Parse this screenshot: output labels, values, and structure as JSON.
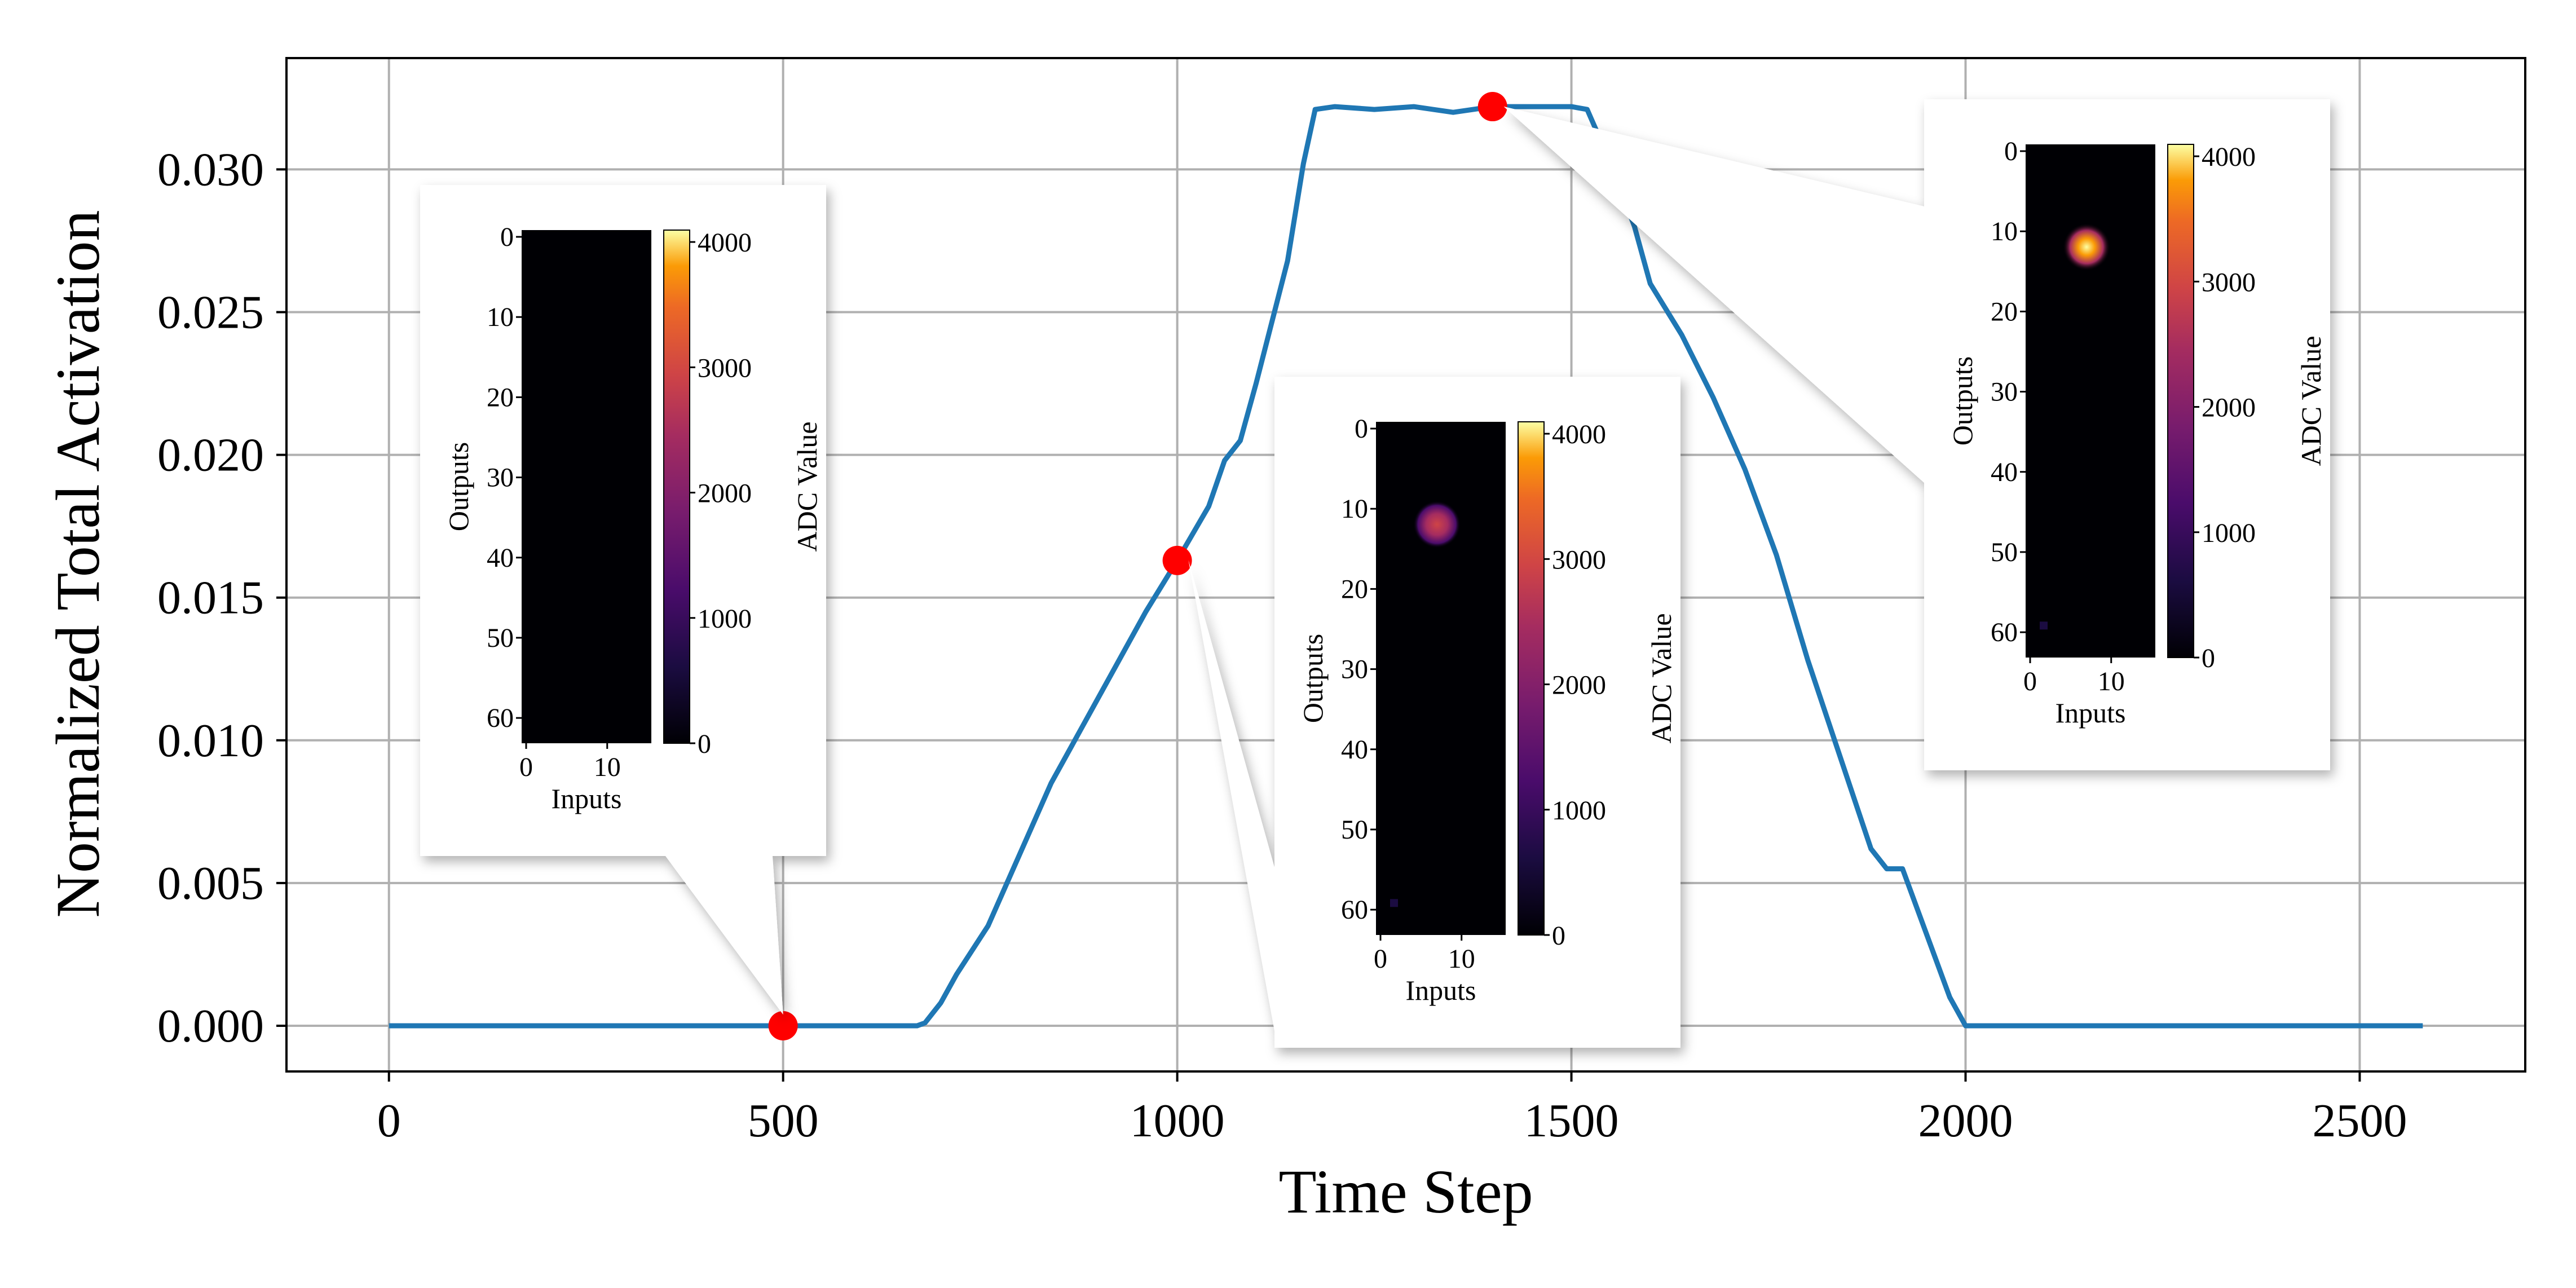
{
  "chart_data": {
    "type": "line",
    "title": "",
    "xlabel": "Time Step",
    "ylabel": "Normalized Total Activation",
    "xlim": [
      -130,
      2710
    ],
    "ylim": [
      -0.0016,
      0.0339
    ],
    "grid": true,
    "xticks": [
      0,
      500,
      1000,
      1500,
      2000,
      2500
    ],
    "xtick_labels": [
      "0",
      "500",
      "1000",
      "1500",
      "2000",
      "2500"
    ],
    "yticks": [
      0.0,
      0.005,
      0.01,
      0.015,
      0.02,
      0.025,
      0.03
    ],
    "ytick_labels": [
      "0.000",
      "0.005",
      "0.010",
      "0.015",
      "0.020",
      "0.025",
      "0.030"
    ],
    "series": [
      {
        "name": "Normalized Total Activation",
        "color": "#1f77b4",
        "x": [
          0,
          100,
          200,
          300,
          400,
          500,
          600,
          670,
          680,
          700,
          720,
          760,
          800,
          840,
          880,
          920,
          960,
          1000,
          1040,
          1060,
          1080,
          1100,
          1140,
          1160,
          1175,
          1200,
          1250,
          1300,
          1350,
          1400,
          1450,
          1500,
          1520,
          1550,
          1580,
          1600,
          1640,
          1680,
          1720,
          1760,
          1800,
          1840,
          1880,
          1900,
          1920,
          1940,
          1980,
          2000,
          2100,
          2200,
          2300,
          2400,
          2500,
          2580
        ],
        "y": [
          0.0,
          0.0,
          0.0,
          0.0,
          0.0,
          0.0,
          0.0,
          0.0,
          0.0001,
          0.0008,
          0.0018,
          0.0035,
          0.006,
          0.0085,
          0.0105,
          0.0125,
          0.0145,
          0.0163,
          0.0182,
          0.0198,
          0.0205,
          0.0225,
          0.0268,
          0.0302,
          0.0321,
          0.0322,
          0.0321,
          0.0322,
          0.032,
          0.0322,
          0.0322,
          0.0322,
          0.0321,
          0.0302,
          0.028,
          0.026,
          0.0242,
          0.022,
          0.0195,
          0.0165,
          0.0128,
          0.0095,
          0.0062,
          0.0055,
          0.0055,
          0.004,
          0.001,
          0.0,
          0.0,
          0.0,
          0.0,
          0.0,
          0.0,
          0.0
        ]
      }
    ],
    "highlighted_points": [
      {
        "x": 500,
        "y": 0.0,
        "color": "#ff0000"
      },
      {
        "x": 1000,
        "y": 0.0163,
        "color": "#ff0000"
      },
      {
        "x": 1400,
        "y": 0.0322,
        "color": "#ff0000"
      }
    ],
    "insets": [
      {
        "target_x": 500,
        "target_y": 0.0,
        "ylabel": "Outputs",
        "xlabel": "Inputs",
        "yticks": [
          "0",
          "10",
          "20",
          "30",
          "40",
          "50",
          "60"
        ],
        "xticks": [
          "0",
          "10"
        ],
        "colorbar_label": "ADC Value",
        "colorbar_ticks": [
          "0",
          "1000",
          "2000",
          "3000",
          "4000"
        ],
        "hotspot_intensity": 0.0
      },
      {
        "target_x": 1000,
        "target_y": 0.0163,
        "ylabel": "Outputs",
        "xlabel": "Inputs",
        "yticks": [
          "0",
          "10",
          "20",
          "30",
          "40",
          "50",
          "60"
        ],
        "xticks": [
          "0",
          "10"
        ],
        "colorbar_label": "ADC Value",
        "colorbar_ticks": [
          "0",
          "1000",
          "2000",
          "3000",
          "4000"
        ],
        "hotspot_intensity": 0.55
      },
      {
        "target_x": 1400,
        "target_y": 0.0322,
        "ylabel": "Outputs",
        "xlabel": "Inputs",
        "yticks": [
          "0",
          "10",
          "20",
          "30",
          "40",
          "50",
          "60"
        ],
        "xticks": [
          "0",
          "10"
        ],
        "colorbar_label": "ADC Value",
        "colorbar_ticks": [
          "0",
          "1000",
          "2000",
          "3000",
          "4000"
        ],
        "hotspot_intensity": 0.9
      }
    ],
    "colormap": "inferno"
  }
}
